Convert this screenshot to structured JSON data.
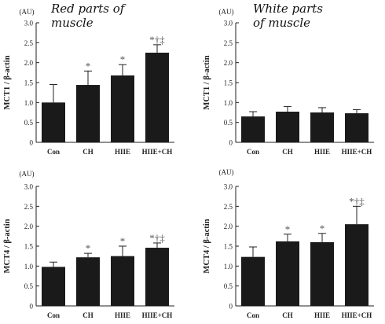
{
  "chart_data": [
    {
      "type": "bar",
      "title": "Red parts of muscle",
      "title_lines": [
        "Red parts of",
        "muscle"
      ],
      "unit_label": "(AU)",
      "ylabel": "MCT1 / β-actin",
      "xlabel": "",
      "categories": [
        "Con",
        "CH",
        "HIIE",
        "HIIE+CH"
      ],
      "values": [
        1.0,
        1.44,
        1.68,
        2.25
      ],
      "errors": [
        0.45,
        0.35,
        0.27,
        0.2
      ],
      "annotations": [
        "",
        "*",
        "*",
        "*†‡"
      ],
      "ylim": [
        0,
        3.0
      ],
      "yticks": [
        "0",
        "0.5",
        "1.0",
        "1.5",
        "2.0",
        "2.5",
        "3.0"
      ],
      "grid": false,
      "bar_color": "#1a1a1a"
    },
    {
      "type": "bar",
      "title": "White parts of muscle",
      "title_lines": [
        "White parts",
        "of muscle"
      ],
      "unit_label": "(AU)",
      "ylabel": "MCT1 / β-actin",
      "xlabel": "",
      "categories": [
        "Con",
        "CH",
        "HIIE",
        "HIIE+CH"
      ],
      "values": [
        0.65,
        0.77,
        0.75,
        0.73
      ],
      "errors": [
        0.12,
        0.13,
        0.12,
        0.09
      ],
      "annotations": [
        "",
        "",
        "",
        ""
      ],
      "ylim": [
        0,
        3.0
      ],
      "yticks": [
        "0",
        "0.5",
        "1.0",
        "1.5",
        "2.0",
        "2.5",
        "3.0"
      ],
      "grid": false,
      "bar_color": "#1a1a1a"
    },
    {
      "type": "bar",
      "title": "",
      "title_lines": [],
      "unit_label": "(AU)",
      "ylabel": "MCT4 / β-actin",
      "xlabel": "",
      "categories": [
        "Con",
        "CH",
        "HIIE",
        "HIIE+CH"
      ],
      "values": [
        0.98,
        1.22,
        1.25,
        1.46
      ],
      "errors": [
        0.12,
        0.1,
        0.25,
        0.12
      ],
      "annotations": [
        "",
        "*",
        "*",
        "*†‡"
      ],
      "ylim": [
        0,
        3.0
      ],
      "yticks": [
        "0",
        "0.5",
        "1.0",
        "1.5",
        "2.0",
        "2.5",
        "3.0"
      ],
      "grid": false,
      "bar_color": "#1a1a1a"
    },
    {
      "type": "bar",
      "title": "",
      "title_lines": [],
      "unit_label": "(AU)",
      "ylabel": "MCT4 / β-actin",
      "xlabel": "",
      "categories": [
        "Con",
        "CH",
        "HIIE",
        "HIIE+CH"
      ],
      "values": [
        1.23,
        1.62,
        1.6,
        2.05
      ],
      "errors": [
        0.25,
        0.18,
        0.22,
        0.45
      ],
      "annotations": [
        "",
        "*",
        "*",
        "*†‡"
      ],
      "ylim": [
        0,
        3.0
      ],
      "yticks": [
        "0",
        "0.5",
        "1.0",
        "1.5",
        "2.0",
        "2.5",
        "3.0"
      ],
      "grid": false,
      "bar_color": "#1a1a1a"
    }
  ]
}
